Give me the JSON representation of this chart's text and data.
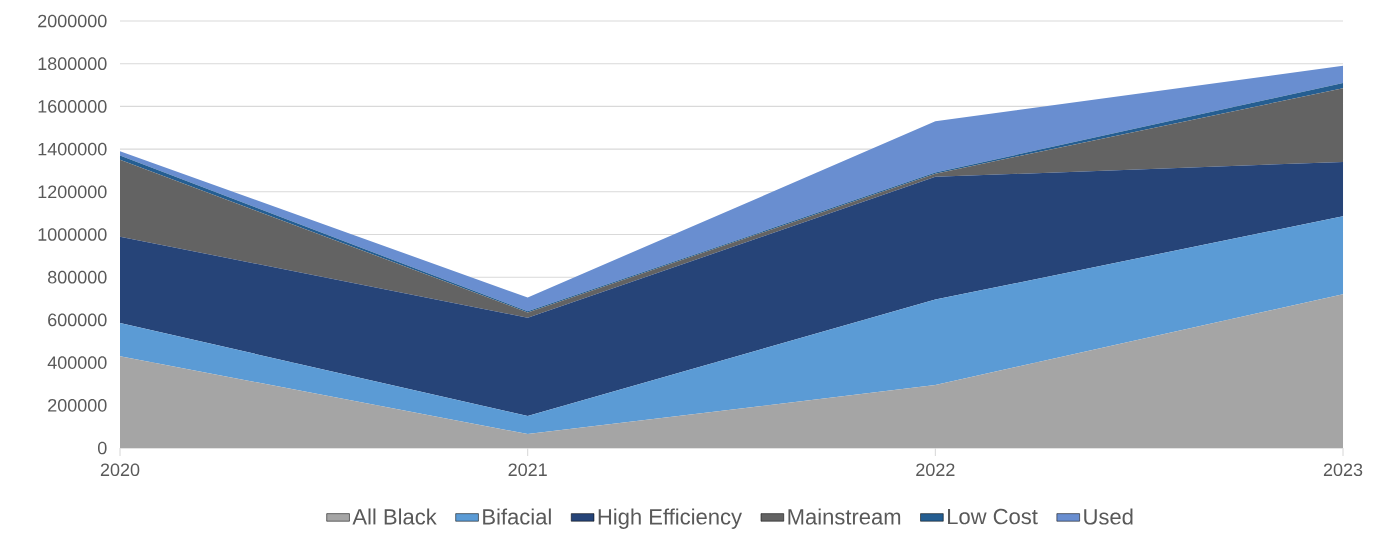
{
  "chart_data": {
    "type": "area",
    "stacked": true,
    "categories": [
      "2020",
      "2021",
      "2022",
      "2023"
    ],
    "series": [
      {
        "name": "All Black",
        "color": "#a5a5a5",
        "values": [
          430000,
          65000,
          295000,
          720000
        ]
      },
      {
        "name": "Bifacial",
        "color": "#5b9bd5",
        "values": [
          155000,
          85000,
          400000,
          365000
        ]
      },
      {
        "name": "High Efficiency",
        "color": "#264478",
        "values": [
          405000,
          460000,
          575000,
          255000
        ]
      },
      {
        "name": "Mainstream",
        "color": "#636363",
        "values": [
          360000,
          25000,
          15000,
          345000
        ]
      },
      {
        "name": "Low Cost",
        "color": "#255e91",
        "values": [
          20000,
          5000,
          5000,
          25000
        ]
      },
      {
        "name": "Used",
        "color": "#698ed0",
        "values": [
          20000,
          65000,
          240000,
          80000
        ]
      }
    ],
    "ylim": [
      0,
      2000000
    ],
    "yticks": [
      0,
      200000,
      400000,
      600000,
      800000,
      1000000,
      1200000,
      1400000,
      1600000,
      1800000,
      2000000
    ],
    "grid": "y",
    "legend": "bottom"
  }
}
